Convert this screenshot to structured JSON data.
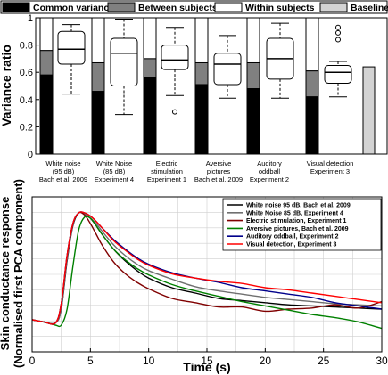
{
  "chart_data": [
    {
      "type": "bar",
      "legend": {
        "placement": "top",
        "entries": [
          {
            "label": "Common variance",
            "color": "#000000"
          },
          {
            "label": "Between subjects",
            "color": "#808080"
          },
          {
            "label": "Within subjects",
            "color": "#ffffff"
          },
          {
            "label": "Baseline",
            "color": "#d3d3d3"
          }
        ]
      },
      "ylabel": "Variance ratio",
      "ylim": [
        0,
        1
      ],
      "yticks": [
        "0",
        "0.2",
        "0.4",
        "0.6",
        "0.8",
        "1"
      ],
      "grid": false,
      "categories": [
        [
          "White noise",
          "(95 dB)",
          "Bach et al. 2009"
        ],
        [
          "White Noise",
          "(85 dB)",
          "Experiment 4"
        ],
        [
          "Electric",
          "stimulation",
          "Experiment 1"
        ],
        [
          "Aversive",
          "pictures",
          "Bach et al. 2009"
        ],
        [
          "Auditory",
          "oddball",
          "Experiment 2"
        ],
        [
          "Visual detection",
          "Experiment 3"
        ]
      ],
      "stacked_bars": [
        {
          "common": 0.58,
          "between": 0.18
        },
        {
          "common": 0.46,
          "between": 0.21
        },
        {
          "common": 0.56,
          "between": 0.14
        },
        {
          "common": 0.51,
          "between": 0.16
        },
        {
          "common": 0.48,
          "between": 0.19
        },
        {
          "common": 0.42,
          "between": 0.19
        }
      ],
      "boxplots": [
        {
          "whisker_low": 0.44,
          "q1": 0.66,
          "median": 0.77,
          "q3": 0.9,
          "whisker_high": 0.95,
          "outliers": []
        },
        {
          "whisker_low": 0.29,
          "q1": 0.5,
          "median": 0.74,
          "q3": 0.85,
          "whisker_high": 0.99,
          "outliers": []
        },
        {
          "whisker_low": 0.43,
          "q1": 0.62,
          "median": 0.69,
          "q3": 0.8,
          "whisker_high": 0.93,
          "outliers": [
            0.31
          ]
        },
        {
          "whisker_low": 0.41,
          "q1": 0.51,
          "median": 0.66,
          "q3": 0.74,
          "whisker_high": 0.87,
          "outliers": []
        },
        {
          "whisker_low": 0.41,
          "q1": 0.55,
          "median": 0.7,
          "q3": 0.85,
          "whisker_high": 0.96,
          "outliers": []
        },
        {
          "whisker_low": 0.42,
          "q1": 0.52,
          "median": 0.6,
          "q3": 0.65,
          "whisker_high": 0.68,
          "outliers": [
            0.84,
            0.89,
            0.93
          ]
        }
      ],
      "baseline_bar": {
        "category": 5,
        "value": 0.64
      }
    },
    {
      "type": "line",
      "ylabel": [
        "Skin conductance response",
        "(Normalised first PCA component)"
      ],
      "xlabel": "Time (s)",
      "xlim": [
        0,
        30
      ],
      "xticks": [
        0,
        5,
        10,
        15,
        20,
        25,
        30
      ],
      "ylim": [
        -0.3,
        1.15
      ],
      "grid": true,
      "legend": {
        "placement": "top-right"
      },
      "series": [
        {
          "name": "White noise 95 dB, Bach et al. 2009",
          "color": "#000000",
          "x": [
            0,
            1,
            2,
            2.5,
            3,
            3.5,
            4,
            4.5,
            5,
            5.5,
            6,
            7,
            8,
            9,
            10,
            12,
            14,
            16,
            18,
            20,
            22,
            24,
            26,
            28,
            30
          ],
          "y": [
            0,
            -0.02,
            -0.03,
            0.1,
            0.55,
            0.88,
            1.0,
            0.99,
            0.95,
            0.88,
            0.8,
            0.66,
            0.55,
            0.46,
            0.39,
            0.3,
            0.25,
            0.2,
            0.18,
            0.16,
            0.14,
            0.13,
            0.12,
            0.11,
            0.1
          ]
        },
        {
          "name": "White Noise 85 dB, Experiment 4",
          "color": "#707070",
          "x": [
            0,
            1,
            2,
            2.5,
            3,
            3.5,
            4,
            4.5,
            5,
            5.5,
            6,
            7,
            8,
            9,
            10,
            12,
            14,
            16,
            18,
            20,
            22,
            24,
            26,
            28,
            30
          ],
          "y": [
            0,
            -0.02,
            -0.03,
            0.1,
            0.56,
            0.89,
            1.0,
            0.99,
            0.95,
            0.9,
            0.83,
            0.7,
            0.6,
            0.52,
            0.46,
            0.38,
            0.31,
            0.27,
            0.24,
            0.21,
            0.19,
            0.17,
            0.15,
            0.14,
            0.13
          ]
        },
        {
          "name": "Electric stimulation, Experiment 1",
          "color": "#800000",
          "x": [
            0,
            1,
            2,
            2.5,
            3,
            3.5,
            4,
            4.5,
            5,
            5.5,
            6,
            7,
            8,
            9,
            10,
            12,
            14,
            16,
            18,
            20,
            22,
            24,
            26,
            28,
            30
          ],
          "y": [
            0,
            -0.02,
            -0.03,
            0.15,
            0.6,
            0.9,
            1.0,
            0.98,
            0.9,
            0.8,
            0.7,
            0.54,
            0.43,
            0.35,
            0.29,
            0.2,
            0.16,
            0.12,
            0.12,
            0.08,
            0.1,
            0.11,
            0.14,
            0.11,
            0.17
          ]
        },
        {
          "name": "Aversive pictures, Bach et al. 2009",
          "color": "#008000",
          "x": [
            0,
            1,
            2,
            2.5,
            3,
            3.5,
            4,
            4.5,
            5,
            5.5,
            6,
            7,
            8,
            9,
            10,
            12,
            14,
            16,
            18,
            20,
            22,
            24,
            26,
            28,
            30
          ],
          "y": [
            0,
            -0.02,
            -0.05,
            -0.05,
            0.1,
            0.5,
            0.84,
            0.96,
            0.95,
            0.88,
            0.8,
            0.66,
            0.56,
            0.48,
            0.42,
            0.33,
            0.27,
            0.22,
            0.17,
            0.13,
            0.09,
            0.05,
            0.02,
            -0.02,
            -0.08
          ]
        },
        {
          "name": "Auditory oddball, Experiment 2",
          "color": "#00008b",
          "x": [
            0,
            1,
            2,
            2.5,
            3,
            3.5,
            4,
            4.5,
            5,
            5.5,
            6,
            7,
            8,
            9,
            10,
            12,
            14,
            16,
            18,
            20,
            22,
            24,
            26,
            28,
            30
          ],
          "y": [
            0,
            -0.02,
            -0.03,
            0.15,
            0.6,
            0.9,
            1.0,
            1.0,
            0.97,
            0.92,
            0.86,
            0.75,
            0.66,
            0.58,
            0.52,
            0.44,
            0.39,
            0.35,
            0.3,
            0.27,
            0.24,
            0.21,
            0.16,
            0.13,
            0.1
          ]
        },
        {
          "name": "Visual detection, Experiment 3",
          "color": "#ff0000",
          "x": [
            0,
            1,
            2,
            2.5,
            3,
            3.5,
            4,
            4.5,
            5,
            5.5,
            6,
            7,
            8,
            9,
            10,
            12,
            14,
            16,
            18,
            20,
            22,
            24,
            26,
            28,
            30
          ],
          "y": [
            0,
            -0.02,
            -0.03,
            0.15,
            0.6,
            0.9,
            1.0,
            1.0,
            0.97,
            0.92,
            0.86,
            0.74,
            0.65,
            0.57,
            0.51,
            0.43,
            0.39,
            0.36,
            0.34,
            0.3,
            0.28,
            0.25,
            0.22,
            0.19,
            0.16
          ]
        }
      ]
    }
  ]
}
